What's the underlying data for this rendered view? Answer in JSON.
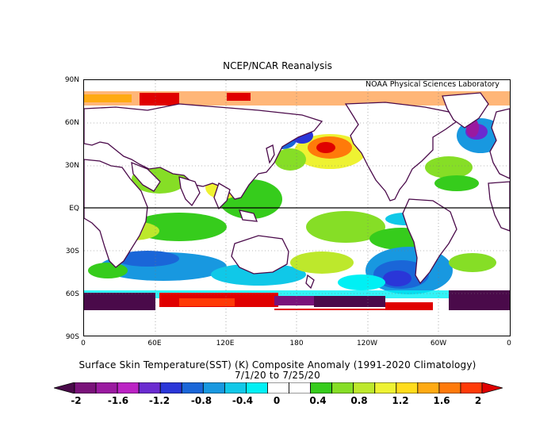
{
  "header": {
    "title": "NCEP/NCAR Reanalysis",
    "credit": "NOAA Physical Sciences Laboratory"
  },
  "axes": {
    "lat_labels": [
      "90N",
      "60N",
      "30N",
      "EQ",
      "30S",
      "60S",
      "90S"
    ],
    "lon_labels": [
      "0",
      "60E",
      "120E",
      "180",
      "120W",
      "60W",
      "0"
    ]
  },
  "caption": {
    "line1": "Surface Skin Temperature(SST) (K) Composite Anomaly (1991-2020 Climatology)",
    "line2": "7/1/20  to 7/25/20"
  },
  "colorbar": {
    "labels": [
      "-2",
      "-1.6",
      "-1.2",
      "-0.8",
      "-0.4",
      "0",
      "0.4",
      "0.8",
      "1.2",
      "1.6",
      "2"
    ],
    "colors": [
      "#4a0a4a",
      "#7a127a",
      "#9a1aa0",
      "#bb22c4",
      "#6a2bd0",
      "#2a36d8",
      "#1a66d8",
      "#1898e0",
      "#10c8e8",
      "#00f0f4",
      "#ffffff",
      "#ffffff",
      "#36cc1c",
      "#86de26",
      "#bde82c",
      "#eef232",
      "#ffdc1c",
      "#ffaa12",
      "#ff7a0a",
      "#ff3a06",
      "#e00000"
    ]
  },
  "map_data": {
    "projection": "cylindrical equidistant",
    "variable": "Surface Skin Temperature anomaly",
    "units": "K",
    "range": [
      -2,
      2
    ]
  }
}
